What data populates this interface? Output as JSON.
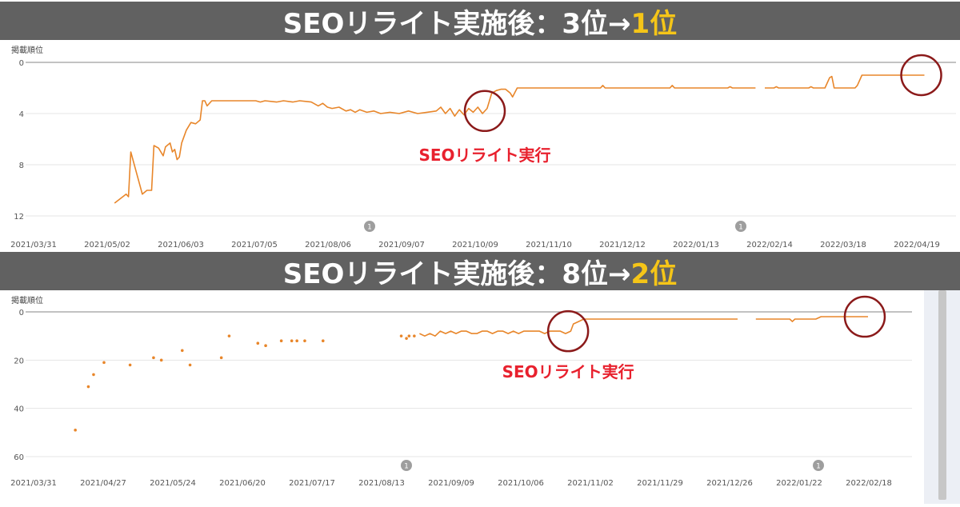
{
  "panels": [
    {
      "title_main": "SEOリライト実施後：3位→",
      "title_accent": "1位",
      "axis_title": "掲載順位",
      "annotation": "SEOリライト実行",
      "note_marker": "1"
    },
    {
      "title_main": "SEOリライト実施後：8位→",
      "title_accent": "2位",
      "axis_title": "掲載順位",
      "annotation": "SEOリライト実行",
      "note_marker": "1"
    }
  ],
  "colors": {
    "line": "#e8862a",
    "circle": "#8b1a1a",
    "annotation": "#e8212e",
    "banner": "#616161",
    "accent": "#f5c518"
  },
  "chart_data": [
    {
      "type": "line",
      "title": "SEOリライト実施後：3位→1位",
      "ylabel": "掲載順位",
      "y_inverted": true,
      "ylim": [
        0,
        12
      ],
      "y_ticks": [
        0,
        4,
        8,
        12
      ],
      "x_ticks": [
        "2021/03/31",
        "2021/05/02",
        "2021/06/03",
        "2021/07/05",
        "2021/08/06",
        "2021/09/07",
        "2021/10/09",
        "2021/11/10",
        "2021/12/12",
        "2022/01/13",
        "2022/02/14",
        "2022/03/18",
        "2022/04/19"
      ],
      "x_range_days": [
        0,
        390
      ],
      "points": [
        [
          35,
          11.0
        ],
        [
          40,
          10.3
        ],
        [
          41,
          10.5
        ],
        [
          42,
          7.0
        ],
        [
          47,
          10.3
        ],
        [
          49,
          10.0
        ],
        [
          51,
          10.0
        ],
        [
          52,
          6.5
        ],
        [
          54,
          6.7
        ],
        [
          56,
          7.3
        ],
        [
          57,
          6.6
        ],
        [
          59,
          6.3
        ],
        [
          60,
          7.0
        ],
        [
          61,
          6.8
        ],
        [
          62,
          7.6
        ],
        [
          63,
          7.4
        ],
        [
          64,
          6.3
        ],
        [
          66,
          5.3
        ],
        [
          68,
          4.7
        ],
        [
          70,
          4.8
        ],
        [
          72,
          4.5
        ],
        [
          73,
          3.0
        ],
        [
          74,
          3.0
        ],
        [
          75,
          3.4
        ],
        [
          77,
          3.0
        ],
        [
          82,
          3.0
        ],
        [
          87,
          3.0
        ],
        [
          92,
          3.0
        ],
        [
          96,
          3.0
        ],
        [
          98,
          3.1
        ],
        [
          100,
          3.0
        ],
        [
          105,
          3.1
        ],
        [
          108,
          3.0
        ],
        [
          112,
          3.1
        ],
        [
          115,
          3.0
        ],
        [
          120,
          3.1
        ],
        [
          123,
          3.4
        ],
        [
          125,
          3.2
        ],
        [
          127,
          3.5
        ],
        [
          129,
          3.6
        ],
        [
          132,
          3.5
        ],
        [
          135,
          3.8
        ],
        [
          137,
          3.7
        ],
        [
          139,
          3.9
        ],
        [
          141,
          3.7
        ],
        [
          144,
          3.9
        ],
        [
          147,
          3.8
        ],
        [
          150,
          4.0
        ],
        [
          154,
          3.9
        ],
        [
          158,
          4.0
        ],
        [
          162,
          3.8
        ],
        [
          166,
          4.0
        ],
        [
          170,
          3.9
        ],
        [
          174,
          3.8
        ],
        [
          176,
          3.5
        ],
        [
          178,
          4.0
        ],
        [
          180,
          3.6
        ],
        [
          182,
          4.2
        ],
        [
          184,
          3.7
        ],
        [
          186,
          4.1
        ],
        [
          188,
          3.6
        ],
        [
          190,
          3.9
        ],
        [
          192,
          3.5
        ],
        [
          194,
          4.0
        ],
        [
          196,
          3.6
        ],
        [
          197,
          3.0
        ],
        [
          198,
          2.4
        ],
        [
          200,
          2.2
        ],
        [
          202,
          2.1
        ],
        [
          204,
          2.1
        ],
        [
          206,
          2.4
        ],
        [
          207,
          2.7
        ],
        [
          209,
          2.0
        ],
        [
          214,
          2.0
        ],
        [
          220,
          2.0
        ],
        [
          230,
          2.0
        ],
        [
          240,
          2.0
        ],
        [
          245,
          2.0
        ],
        [
          246,
          1.8
        ],
        [
          247,
          2.0
        ],
        [
          260,
          2.0
        ],
        [
          275,
          2.0
        ],
        [
          276,
          1.8
        ],
        [
          277,
          2.0
        ],
        [
          290,
          2.0
        ],
        [
          300,
          2.0
        ],
        [
          301,
          1.9
        ],
        [
          302,
          2.0
        ],
        [
          312,
          2.0
        ]
      ],
      "segment2": [
        [
          316,
          2.0
        ],
        [
          320,
          2.0
        ],
        [
          321,
          1.9
        ],
        [
          322,
          2.0
        ],
        [
          330,
          2.0
        ],
        [
          335,
          2.0
        ],
        [
          336,
          1.9
        ],
        [
          337,
          2.0
        ],
        [
          342,
          2.0
        ],
        [
          344,
          1.2
        ],
        [
          345,
          1.1
        ],
        [
          346,
          2.0
        ],
        [
          350,
          2.0
        ],
        [
          355,
          2.0
        ],
        [
          356,
          1.8
        ],
        [
          358,
          1.0
        ],
        [
          365,
          1.0
        ],
        [
          375,
          1.0
        ],
        [
          385,
          1.0
        ]
      ],
      "rewrite_marker_day": 195
    },
    {
      "type": "line",
      "title": "SEOリライト実施後：8位→2位",
      "ylabel": "掲載順位",
      "y_inverted": true,
      "ylim": [
        0,
        60
      ],
      "y_ticks": [
        0,
        20,
        40,
        60
      ],
      "x_ticks": [
        "2021/03/31",
        "2021/04/27",
        "2021/05/24",
        "2021/06/20",
        "2021/07/17",
        "2021/08/13",
        "2021/09/09",
        "2021/10/06",
        "2021/11/02",
        "2021/11/29",
        "2021/12/26",
        "2022/01/22",
        "2022/02/18"
      ],
      "x_range_days": [
        0,
        324
      ],
      "scatter": [
        [
          16,
          49
        ],
        [
          21,
          31
        ],
        [
          23,
          26
        ],
        [
          27,
          21
        ],
        [
          37,
          22
        ],
        [
          46,
          19
        ],
        [
          49,
          20
        ],
        [
          57,
          16
        ],
        [
          60,
          22
        ],
        [
          72,
          19
        ],
        [
          75,
          10
        ],
        [
          86,
          13
        ],
        [
          89,
          14
        ],
        [
          95,
          12
        ],
        [
          99,
          12
        ],
        [
          101,
          12
        ],
        [
          104,
          12
        ],
        [
          111,
          12
        ],
        [
          141,
          10
        ],
        [
          143,
          11
        ],
        [
          144,
          10
        ],
        [
          146,
          10
        ]
      ],
      "points": [
        [
          148,
          9
        ],
        [
          150,
          10
        ],
        [
          152,
          9
        ],
        [
          154,
          10
        ],
        [
          156,
          8
        ],
        [
          158,
          9
        ],
        [
          160,
          8
        ],
        [
          162,
          9
        ],
        [
          164,
          8
        ],
        [
          166,
          8
        ],
        [
          168,
          9
        ],
        [
          170,
          9
        ],
        [
          172,
          8
        ],
        [
          174,
          8
        ],
        [
          176,
          9
        ],
        [
          178,
          8
        ],
        [
          180,
          8
        ],
        [
          182,
          9
        ],
        [
          184,
          8
        ],
        [
          186,
          9
        ],
        [
          188,
          8
        ],
        [
          190,
          8
        ],
        [
          192,
          8
        ],
        [
          194,
          8
        ],
        [
          196,
          9
        ],
        [
          198,
          8
        ],
        [
          200,
          8
        ],
        [
          202,
          8
        ],
        [
          204,
          9
        ],
        [
          206,
          8
        ],
        [
          207,
          5
        ],
        [
          209,
          4
        ],
        [
          211,
          3
        ],
        [
          213,
          3
        ],
        [
          220,
          3
        ],
        [
          232,
          3
        ],
        [
          245,
          3
        ],
        [
          251,
          3
        ],
        [
          253,
          3
        ],
        [
          258,
          3
        ],
        [
          266,
          3
        ],
        [
          268,
          3
        ],
        [
          270,
          3
        ]
      ],
      "segment2": [
        [
          277,
          3
        ],
        [
          283,
          3
        ],
        [
          290,
          3
        ],
        [
          291,
          4
        ],
        [
          292,
          3
        ],
        [
          300,
          3
        ],
        [
          302,
          2
        ],
        [
          310,
          2
        ],
        [
          320,
          2
        ]
      ],
      "rewrite_marker_day": 205
    }
  ]
}
